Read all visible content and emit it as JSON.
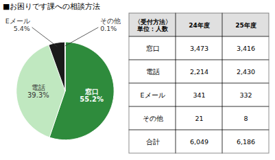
{
  "chart_data": {
    "type": "pie",
    "title": "■お困りです課への相談方法",
    "categories": [
      "窓口",
      "電話",
      "Eメール",
      "その他"
    ],
    "values": [
      55.2,
      39.3,
      5.4,
      0.1
    ],
    "value_labels": [
      "55.2%",
      "39.3%",
      "5.4%",
      "0.1%"
    ],
    "colors": [
      "#2e8b3c",
      "#c0e8c0",
      "#1a1a1a",
      "#555555"
    ],
    "data_labels": true,
    "table": {
      "columns": [
        "〈受付方法〉\n単位：人数",
        "24年度",
        "25年度"
      ],
      "rows": [
        [
          "窓口",
          "3,473",
          "3,416"
        ],
        [
          "電話",
          "2,214",
          "2,430"
        ],
        [
          "Eメール",
          "341",
          "332"
        ],
        [
          "その他",
          "21",
          "8"
        ],
        [
          "合計",
          "6,049",
          "6,186"
        ]
      ]
    }
  }
}
